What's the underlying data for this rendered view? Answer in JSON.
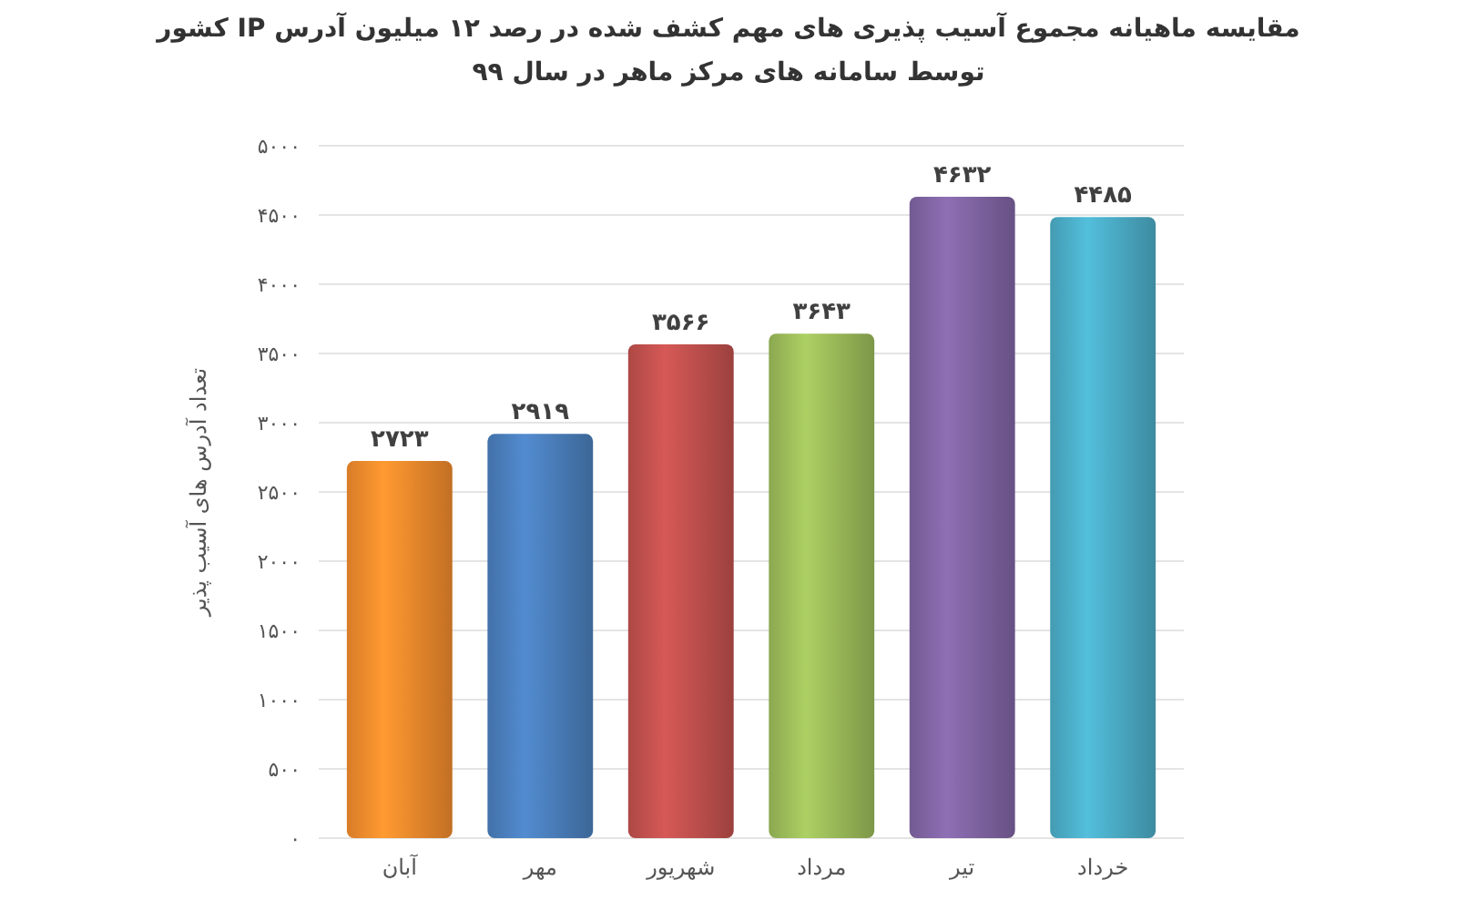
{
  "chart_data": {
    "type": "bar",
    "title": "مقایسه ماهیانه مجموع آسیب پذیری های مهم کشف شده در رصد ۱۲ میلیون آدرس IP کشور",
    "subtitle": "توسط سامانه های مرکز ماهر در سال ۹۹",
    "ylabel": "تعداد آدرس های آسیب پذیر",
    "categories": [
      "آبان",
      "مهر",
      "شهریور",
      "مرداد",
      "تیر",
      "خرداد"
    ],
    "values": [
      2723,
      2919,
      3566,
      3643,
      4632,
      4485
    ],
    "value_labels": [
      "۲۷۲۳",
      "۲۹۱۹",
      "۳۵۶۶",
      "۳۶۴۳",
      "۴۶۳۲",
      "۴۴۸۵"
    ],
    "colors": [
      "#f08a2c",
      "#4a7ebb",
      "#c0504d",
      "#9bbb59",
      "#8064a2",
      "#4bacc6"
    ],
    "ylim": [
      0,
      5000
    ],
    "yticks": [
      {
        "value": 0,
        "label": "۰"
      },
      {
        "value": 500,
        "label": "۵۰۰"
      },
      {
        "value": 1000,
        "label": "۱۰۰۰"
      },
      {
        "value": 1500,
        "label": "۱۵۰۰"
      },
      {
        "value": 2000,
        "label": "۲۰۰۰"
      },
      {
        "value": 2500,
        "label": "۲۵۰۰"
      },
      {
        "value": 3000,
        "label": "۳۰۰۰"
      },
      {
        "value": 3500,
        "label": "۳۵۰۰"
      },
      {
        "value": 4000,
        "label": "۴۰۰۰"
      },
      {
        "value": 4500,
        "label": "۴۵۰۰"
      },
      {
        "value": 5000,
        "label": "۵۰۰۰"
      }
    ],
    "grid": true
  }
}
